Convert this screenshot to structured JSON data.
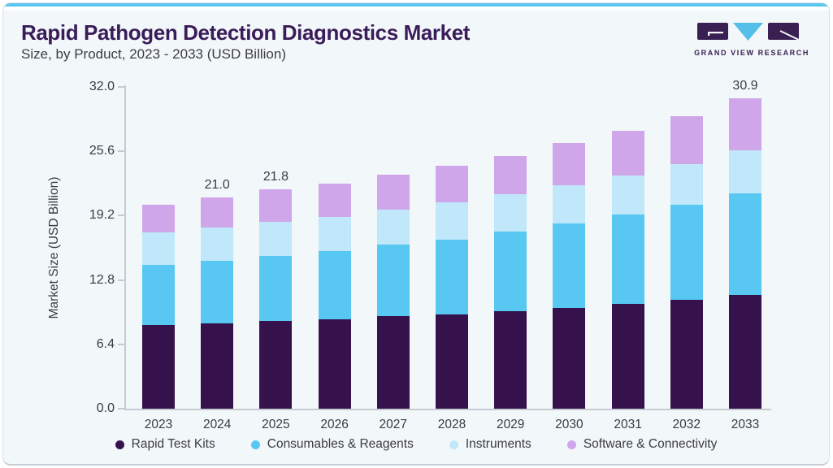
{
  "header": {
    "title": "Rapid Pathogen Detection Diagnostics Market",
    "subtitle": "Size, by Product, 2023 - 2033 (USD Billion)",
    "logo_text": "GRAND VIEW RESEARCH"
  },
  "colors": {
    "top_accent": "#5BC6F0",
    "card_background": "#F2F7FA",
    "title_text": "#3A1C59",
    "body_text": "#3B3B45",
    "axis_line": "#C6CBD1",
    "logo_purple": "#3A2052",
    "logo_blue": "#55BEE9"
  },
  "chart_data": {
    "type": "bar",
    "stacked": true,
    "title": "Rapid Pathogen Detection Diagnostics Market Size, by Product, 2023 - 2033 (USD Billion)",
    "xlabel": "",
    "ylabel": "Market Size (USD Billion)",
    "ylim": [
      0,
      32.0
    ],
    "yticks": [
      0.0,
      6.4,
      12.8,
      19.2,
      25.6,
      32.0
    ],
    "grid": false,
    "legend_position": "bottom",
    "categories": [
      "2023",
      "2024",
      "2025",
      "2026",
      "2027",
      "2028",
      "2029",
      "2030",
      "2031",
      "2032",
      "2033"
    ],
    "series": [
      {
        "name": "Rapid Test Kits",
        "color": "#36124D",
        "values": [
          8.3,
          8.5,
          8.7,
          8.9,
          9.2,
          9.4,
          9.7,
          10.0,
          10.4,
          10.8,
          11.3
        ]
      },
      {
        "name": "Consumables & Reagents",
        "color": "#58C8F3",
        "values": [
          6.0,
          6.2,
          6.5,
          6.8,
          7.1,
          7.4,
          7.9,
          8.4,
          8.9,
          9.5,
          10.1
        ]
      },
      {
        "name": "Instruments",
        "color": "#C0E8FA",
        "values": [
          3.2,
          3.3,
          3.4,
          3.4,
          3.5,
          3.7,
          3.7,
          3.8,
          3.9,
          4.0,
          4.3
        ]
      },
      {
        "name": "Software & Connectivity",
        "color": "#CFA6E9",
        "values": [
          2.8,
          3.0,
          3.2,
          3.3,
          3.5,
          3.7,
          3.8,
          4.2,
          4.4,
          4.8,
          5.2
        ]
      }
    ],
    "totals": [
      20.3,
      21.0,
      21.8,
      22.4,
      23.3,
      24.2,
      25.1,
      26.4,
      27.6,
      29.1,
      30.9
    ],
    "total_labels": {
      "2024": "21.0",
      "2025": "21.8",
      "2033": "30.9"
    }
  }
}
